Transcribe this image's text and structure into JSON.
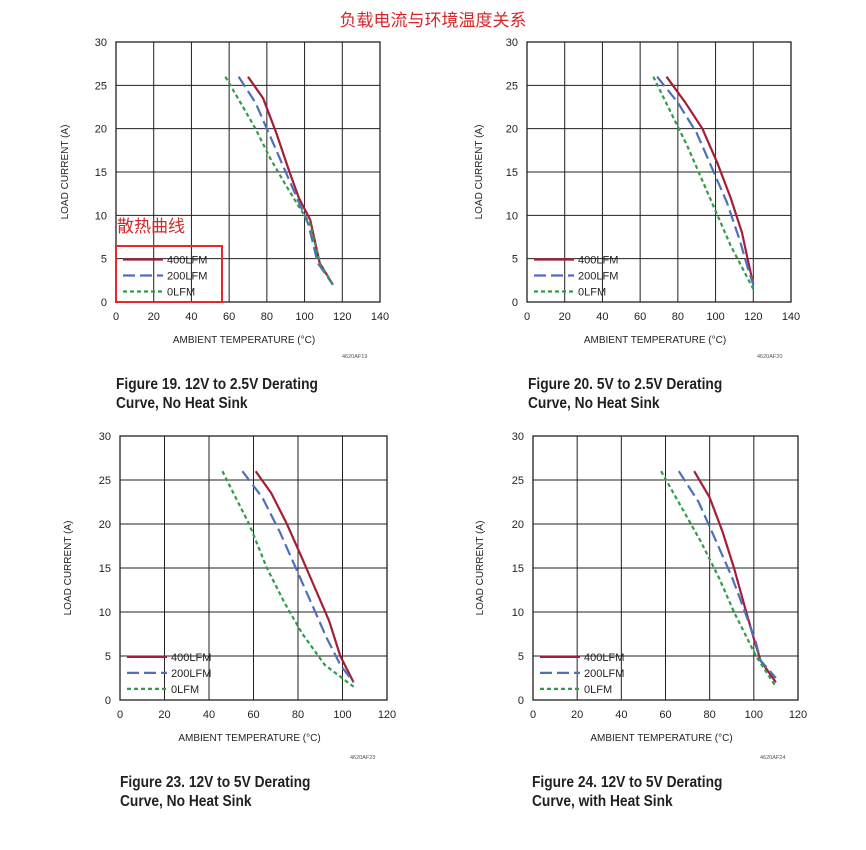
{
  "page_title": "负载电流与环境温度关系",
  "annotation": {
    "label": "散热曲线",
    "color": "#e8262b"
  },
  "colors": {
    "400LFM": "#a51d36",
    "200LFM": "#4f6fbe",
    "0LFM": "#2f9c47",
    "grid": "#231f20"
  },
  "chart_data": [
    {
      "id": "fig19",
      "type": "line",
      "caption_line1": "Figure 19. 12V to 2.5V Derating",
      "caption_line2": "Curve, No Heat Sink",
      "code": "4620AF19",
      "xlabel": "AMBIENT TEMPERATURE (°C)",
      "ylabel": "LOAD CURRENT (A)",
      "xlim": [
        0,
        140
      ],
      "ylim": [
        0,
        30
      ],
      "xticks": [
        0,
        20,
        40,
        60,
        80,
        100,
        120,
        140
      ],
      "yticks": [
        0,
        5,
        10,
        15,
        20,
        25,
        30
      ],
      "legend_position": "bottom-left",
      "series": [
        {
          "name": "400LFM",
          "style": "solid",
          "points": [
            [
              70,
              26
            ],
            [
              78,
              23.5
            ],
            [
              85,
              19.5
            ],
            [
              92,
              15
            ],
            [
              97,
              12
            ],
            [
              103,
              9.5
            ],
            [
              108,
              4.5
            ],
            [
              115,
              2
            ]
          ]
        },
        {
          "name": "200LFM",
          "style": "dash",
          "points": [
            [
              65,
              26
            ],
            [
              74,
              23
            ],
            [
              82,
              19
            ],
            [
              90,
              15
            ],
            [
              96,
              12
            ],
            [
              102,
              9
            ],
            [
              107,
              4.5
            ],
            [
              115,
              2
            ]
          ]
        },
        {
          "name": "0LFM",
          "style": "dot",
          "points": [
            [
              58,
              26
            ],
            [
              66,
              23
            ],
            [
              74,
              20
            ],
            [
              82,
              16.5
            ],
            [
              90,
              13.5
            ],
            [
              97,
              11
            ],
            [
              103,
              9
            ],
            [
              108,
              4.5
            ],
            [
              115,
              2
            ]
          ]
        }
      ]
    },
    {
      "id": "fig20",
      "type": "line",
      "caption_line1": "Figure 20. 5V to 2.5V Derating",
      "caption_line2": "Curve, No Heat Sink",
      "code": "4620AF20",
      "xlabel": "AMBIENT TEMPERATURE (°C)",
      "ylabel": "LOAD CURRENT (A)",
      "xlim": [
        0,
        140
      ],
      "ylim": [
        0,
        30
      ],
      "xticks": [
        0,
        20,
        40,
        60,
        80,
        100,
        120,
        140
      ],
      "yticks": [
        0,
        5,
        10,
        15,
        20,
        25,
        30
      ],
      "legend_position": "bottom-left",
      "series": [
        {
          "name": "400LFM",
          "style": "solid",
          "points": [
            [
              74,
              26
            ],
            [
              84,
              23
            ],
            [
              93,
              20
            ],
            [
              101,
              16
            ],
            [
              108,
              12
            ],
            [
              114,
              8
            ],
            [
              117,
              5
            ],
            [
              120,
              2
            ]
          ]
        },
        {
          "name": "200LFM",
          "style": "dash",
          "points": [
            [
              69,
              26
            ],
            [
              80,
              23
            ],
            [
              90,
              19.5
            ],
            [
              98,
              15.5
            ],
            [
              106,
              11.5
            ],
            [
              113,
              7
            ],
            [
              117,
              4
            ],
            [
              120,
              2
            ]
          ]
        },
        {
          "name": "0LFM",
          "style": "dot",
          "points": [
            [
              67,
              26
            ],
            [
              76,
              22
            ],
            [
              85,
              18
            ],
            [
              93,
              14
            ],
            [
              101,
              10
            ],
            [
              108,
              6.5
            ],
            [
              114,
              4
            ],
            [
              120,
              1.5
            ]
          ]
        }
      ]
    },
    {
      "id": "fig23",
      "type": "line",
      "caption_line1": "Figure 23. 12V to 5V Derating",
      "caption_line2": "Curve, No Heat Sink",
      "code": "4620AF23",
      "xlabel": "AMBIENT TEMPERATURE (°C)",
      "ylabel": "LOAD CURRENT (A)",
      "xlim": [
        0,
        120
      ],
      "ylim": [
        0,
        30
      ],
      "xticks": [
        0,
        20,
        40,
        60,
        80,
        100,
        120
      ],
      "yticks": [
        0,
        5,
        10,
        15,
        20,
        25,
        30
      ],
      "legend_position": "bottom-left",
      "series": [
        {
          "name": "400LFM",
          "style": "solid",
          "points": [
            [
              61,
              26
            ],
            [
              68,
              23.5
            ],
            [
              75,
              20
            ],
            [
              82,
              16
            ],
            [
              88,
              12.5
            ],
            [
              94,
              9
            ],
            [
              99,
              5
            ],
            [
              105,
              2
            ]
          ]
        },
        {
          "name": "200LFM",
          "style": "dash",
          "points": [
            [
              55,
              26
            ],
            [
              64,
              23
            ],
            [
              72,
              19
            ],
            [
              79,
              15
            ],
            [
              86,
              11
            ],
            [
              93,
              7
            ],
            [
              99,
              4
            ],
            [
              105,
              2
            ]
          ]
        },
        {
          "name": "0LFM",
          "style": "dot",
          "points": [
            [
              46,
              26
            ],
            [
              52,
              23
            ],
            [
              58,
              20
            ],
            [
              66,
              15
            ],
            [
              74,
              11
            ],
            [
              82,
              7.5
            ],
            [
              92,
              4
            ],
            [
              105,
              1.5
            ]
          ]
        }
      ]
    },
    {
      "id": "fig24",
      "type": "line",
      "caption_line1": "Figure 24. 12V to 5V Derating",
      "caption_line2": "Curve, with Heat Sink",
      "code": "4620AF24",
      "xlabel": "AMBIENT TEMPERATURE (°C)",
      "ylabel": "LOAD CURRENT (A)",
      "xlim": [
        0,
        120
      ],
      "ylim": [
        0,
        30
      ],
      "xticks": [
        0,
        20,
        40,
        60,
        80,
        100,
        120
      ],
      "yticks": [
        0,
        5,
        10,
        15,
        20,
        25,
        30
      ],
      "legend_position": "bottom-left",
      "series": [
        {
          "name": "400LFM",
          "style": "solid",
          "points": [
            [
              73,
              26
            ],
            [
              80,
              23
            ],
            [
              86,
              19
            ],
            [
              91,
              15
            ],
            [
              96,
              10.5
            ],
            [
              100,
              7
            ],
            [
              103,
              4.5
            ],
            [
              110,
              2
            ]
          ]
        },
        {
          "name": "200LFM",
          "style": "dash",
          "points": [
            [
              66,
              26
            ],
            [
              75,
              22.5
            ],
            [
              83,
              18
            ],
            [
              90,
              14
            ],
            [
              96,
              10
            ],
            [
              101,
              6.5
            ],
            [
              103,
              4.5
            ],
            [
              110,
              2.5
            ]
          ]
        },
        {
          "name": "0LFM",
          "style": "dot",
          "points": [
            [
              58,
              26
            ],
            [
              67,
              22
            ],
            [
              76,
              18
            ],
            [
              84,
              14
            ],
            [
              91,
              10
            ],
            [
              97,
              7
            ],
            [
              101,
              5
            ],
            [
              110,
              1.5
            ]
          ]
        }
      ]
    }
  ]
}
